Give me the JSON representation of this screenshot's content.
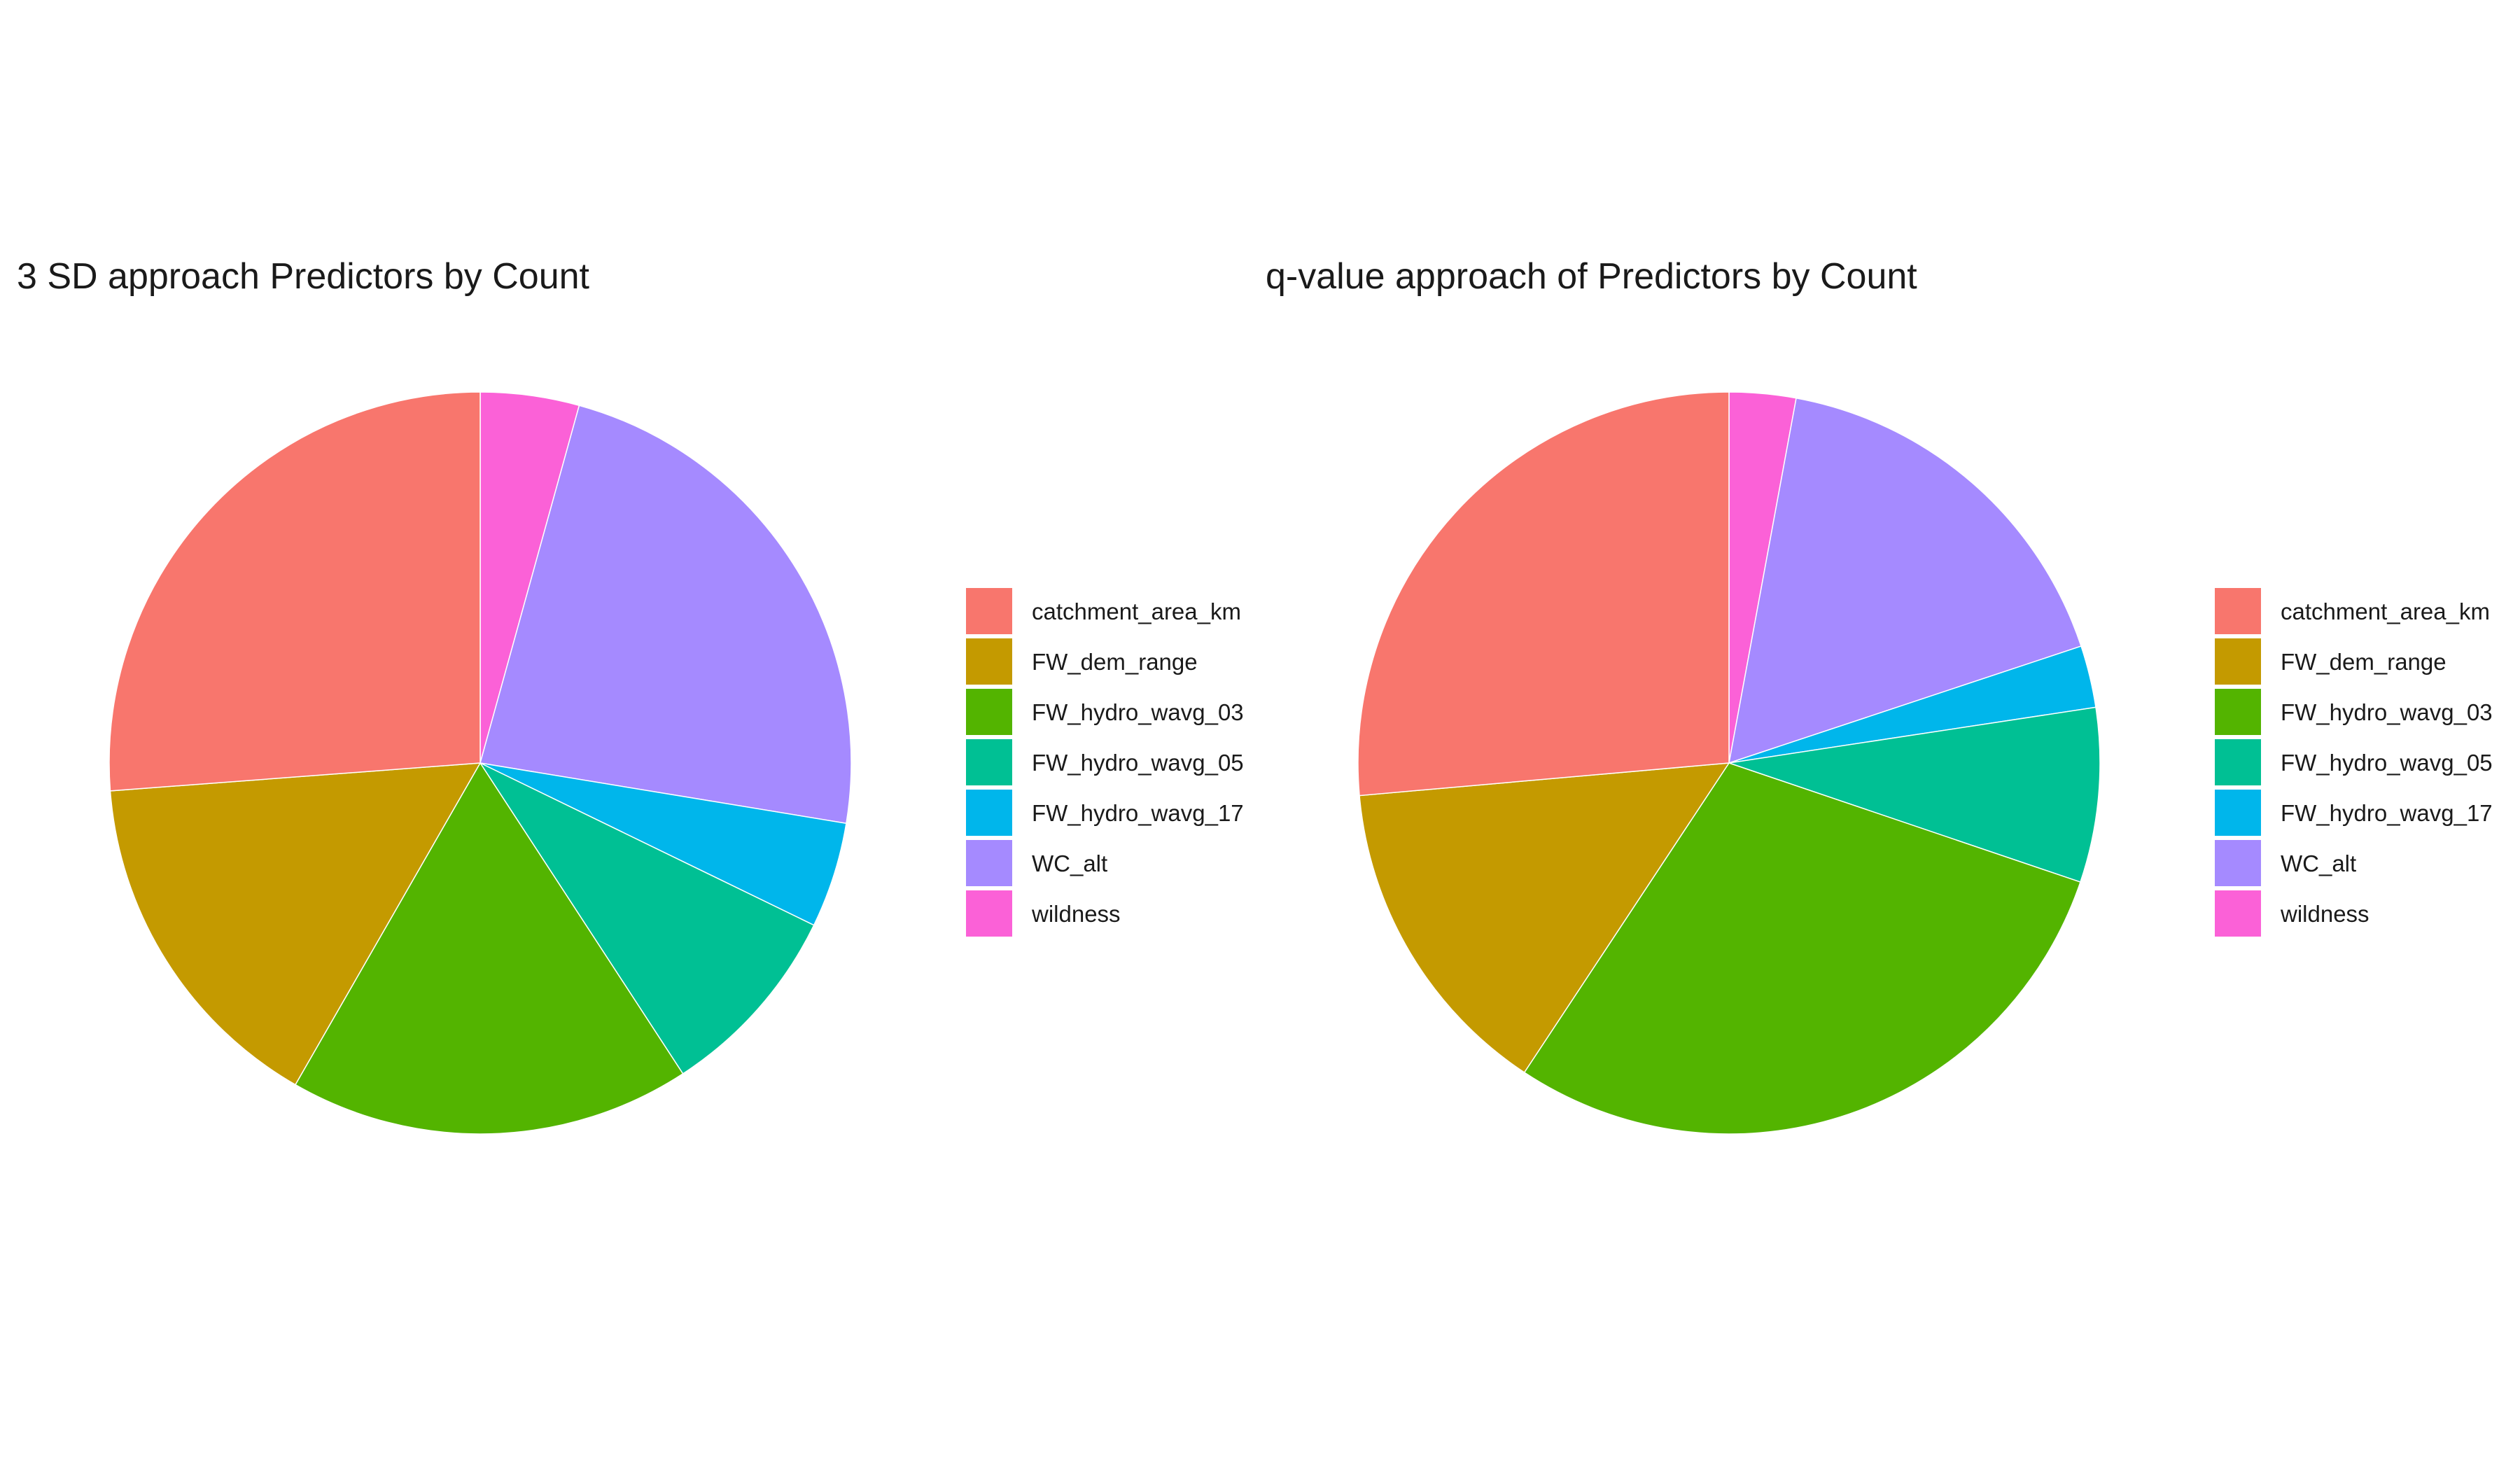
{
  "chart_data": [
    {
      "type": "pie",
      "title": "3 SD approach Predictors by Count",
      "categories": [
        "catchment_area_km",
        "FW_dem_range",
        "FW_hydro_wavg_03",
        "FW_hydro_wavg_05",
        "FW_hydro_wavg_17",
        "WC_alt",
        "wildness"
      ],
      "values": [
        26.2,
        15.5,
        17.5,
        8.6,
        4.6,
        23.3,
        4.3
      ],
      "colors": [
        "#F8766D",
        "#C49A00",
        "#53B400",
        "#00C094",
        "#00B6EB",
        "#A58AFF",
        "#FB61D7"
      ],
      "legend": "right"
    },
    {
      "type": "pie",
      "title": "q-value approach of Predictors by Count",
      "categories": [
        "catchment_area_km",
        "FW_dem_range",
        "FW_hydro_wavg_03",
        "FW_hydro_wavg_05",
        "FW_hydro_wavg_17",
        "WC_alt",
        "wildness"
      ],
      "values": [
        26.4,
        14.3,
        29.1,
        7.6,
        2.7,
        17.0,
        2.9
      ],
      "colors": [
        "#F8766D",
        "#C49A00",
        "#53B400",
        "#00C094",
        "#00B6EB",
        "#A58AFF",
        "#FB61D7"
      ],
      "legend": "right"
    }
  ]
}
